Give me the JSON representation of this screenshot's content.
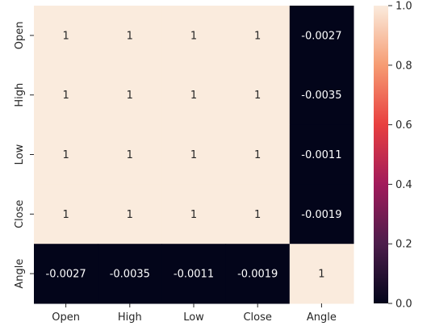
{
  "chart_data": {
    "type": "heatmap",
    "title": "",
    "xlabel": "",
    "ylabel": "",
    "row_labels": [
      "Open",
      "High",
      "Low",
      "Close",
      "Angle"
    ],
    "col_labels": [
      "Open",
      "High",
      "Low",
      "Close",
      "Angle"
    ],
    "values": [
      [
        1,
        1,
        1,
        1,
        -0.0027
      ],
      [
        1,
        1,
        1,
        1,
        -0.0035
      ],
      [
        1,
        1,
        1,
        1,
        -0.0011
      ],
      [
        1,
        1,
        1,
        1,
        -0.0019
      ],
      [
        -0.0027,
        -0.0035,
        -0.0011,
        -0.0019,
        1
      ]
    ],
    "annotations": [
      [
        "1",
        "1",
        "1",
        "1",
        "-0.0027"
      ],
      [
        "1",
        "1",
        "1",
        "1",
        "-0.0035"
      ],
      [
        "1",
        "1",
        "1",
        "1",
        "-0.0011"
      ],
      [
        "1",
        "1",
        "1",
        "1",
        "-0.0019"
      ],
      [
        "-0.0027",
        "-0.0035",
        "-0.0011",
        "-0.0019",
        "1"
      ]
    ],
    "colorbar": {
      "range": [
        0.0,
        1.0
      ],
      "ticks": [
        0.0,
        0.2,
        0.4,
        0.6,
        0.8,
        1.0
      ],
      "tick_labels": [
        "0.0",
        "0.2",
        "0.4",
        "0.6",
        "0.8",
        "1.0"
      ],
      "colormap": "rocket",
      "colormap_stops": [
        "#03051a",
        "#4c1d4b",
        "#a11a5b",
        "#e83f3f",
        "#f69c73",
        "#faebdd"
      ]
    },
    "legend": "colorbar-right"
  }
}
